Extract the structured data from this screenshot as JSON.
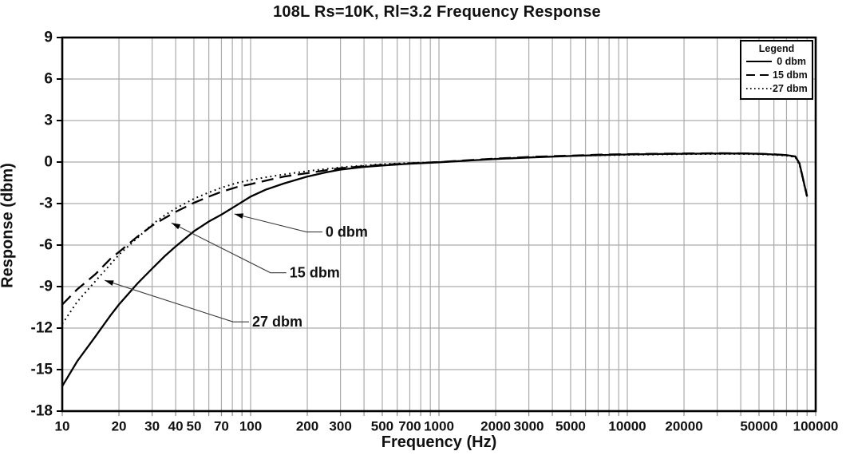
{
  "title": "108L Rs=10K, Rl=3.2 Frequency Response",
  "x_axis": {
    "label": "Frequency (Hz)",
    "scale": "log",
    "min": 10,
    "max": 100000,
    "tick_values": [
      10,
      20,
      30,
      40,
      50,
      70,
      100,
      200,
      300,
      500,
      700,
      1000,
      2000,
      3000,
      5000,
      10000,
      20000,
      50000,
      100000
    ],
    "tick_labels": [
      "10",
      "20",
      "30",
      "40",
      "50",
      "70",
      "100",
      "200",
      "300",
      "500",
      "700",
      "1000",
      "2000",
      "3000",
      "5000",
      "10000",
      "20000",
      "50000",
      "100000"
    ]
  },
  "y_axis": {
    "label": "Response (dbm)",
    "scale": "linear",
    "min": -18,
    "max": 9,
    "step": 3,
    "tick_labels": [
      "9",
      "6",
      "3",
      "0",
      "-3",
      "-6",
      "-9",
      "-12",
      "-15",
      "-18"
    ]
  },
  "legend": {
    "title": "Legend",
    "entries": [
      {
        "label": "0 dbm",
        "style": "solid"
      },
      {
        "label": "15 dbm",
        "style": "dashed"
      },
      {
        "label": "27 dbm",
        "style": "dotted"
      }
    ]
  },
  "annotations": [
    {
      "label": "0 dbm",
      "arrow_hz": 82,
      "arrow_dbm": -3.75,
      "text_hz": 250,
      "text_dbm": -5.05
    },
    {
      "label": "15 dbm",
      "arrow_hz": 38,
      "arrow_dbm": -4.4,
      "text_hz": 161,
      "text_dbm": -8.0
    },
    {
      "label": "27 dbm",
      "arrow_hz": 16.8,
      "arrow_dbm": -8.55,
      "text_hz": 102,
      "text_dbm": -11.55
    }
  ],
  "colors": {
    "background": "#ffffff",
    "grid": "#ababab",
    "axis": "#000000",
    "curve": "#000000",
    "text": "#111111",
    "leader_line": "#3c3c3c"
  },
  "chart_data": {
    "type": "line",
    "title": "108L Rs=10K, Rl=3.2 Frequency Response",
    "xlabel": "Frequency (Hz)",
    "ylabel": "Response (dbm)",
    "x_scale": "log",
    "xlim": [
      10,
      100000
    ],
    "ylim": [
      -18,
      9
    ],
    "y_tick_step": 3,
    "grid": true,
    "legend_position": "top-right",
    "series": [
      {
        "name": "0 dbm",
        "line_style": "solid",
        "points": [
          [
            10,
            -16.2
          ],
          [
            12,
            -14.4
          ],
          [
            15,
            -12.6
          ],
          [
            18,
            -11.1
          ],
          [
            20,
            -10.3
          ],
          [
            25,
            -8.8
          ],
          [
            30,
            -7.7
          ],
          [
            35,
            -6.8
          ],
          [
            40,
            -6.1
          ],
          [
            50,
            -5.0
          ],
          [
            60,
            -4.3
          ],
          [
            70,
            -3.8
          ],
          [
            85,
            -3.1
          ],
          [
            100,
            -2.5
          ],
          [
            120,
            -2.0
          ],
          [
            150,
            -1.55
          ],
          [
            200,
            -1.05
          ],
          [
            250,
            -0.75
          ],
          [
            300,
            -0.55
          ],
          [
            400,
            -0.35
          ],
          [
            500,
            -0.25
          ],
          [
            700,
            -0.12
          ],
          [
            1000,
            -0.02
          ],
          [
            1500,
            0.12
          ],
          [
            2000,
            0.22
          ],
          [
            3000,
            0.33
          ],
          [
            5000,
            0.44
          ],
          [
            7000,
            0.5
          ],
          [
            10000,
            0.55
          ],
          [
            15000,
            0.58
          ],
          [
            20000,
            0.6
          ],
          [
            30000,
            0.62
          ],
          [
            40000,
            0.62
          ],
          [
            50000,
            0.6
          ],
          [
            60000,
            0.55
          ],
          [
            70000,
            0.5
          ],
          [
            78000,
            0.4
          ],
          [
            82000,
            -0.1
          ],
          [
            86000,
            -1.3
          ],
          [
            90000,
            -2.5
          ]
        ]
      },
      {
        "name": "15 dbm",
        "line_style": "dashed",
        "points": [
          [
            10,
            -10.3
          ],
          [
            12,
            -9.2
          ],
          [
            15,
            -8.1
          ],
          [
            18,
            -7.0
          ],
          [
            20,
            -6.5
          ],
          [
            25,
            -5.4
          ],
          [
            30,
            -4.6
          ],
          [
            35,
            -4.05
          ],
          [
            40,
            -3.6
          ],
          [
            50,
            -2.95
          ],
          [
            60,
            -2.5
          ],
          [
            70,
            -2.15
          ],
          [
            85,
            -1.8
          ],
          [
            100,
            -1.6
          ],
          [
            120,
            -1.35
          ],
          [
            150,
            -1.05
          ],
          [
            200,
            -0.8
          ],
          [
            250,
            -0.6
          ],
          [
            300,
            -0.45
          ],
          [
            400,
            -0.3
          ],
          [
            500,
            -0.2
          ],
          [
            700,
            -0.1
          ],
          [
            1000,
            0.0
          ],
          [
            1500,
            0.15
          ],
          [
            2000,
            0.25
          ],
          [
            3000,
            0.37
          ],
          [
            5000,
            0.47
          ],
          [
            7000,
            0.53
          ],
          [
            10000,
            0.57
          ],
          [
            15000,
            0.6
          ],
          [
            20000,
            0.62
          ],
          [
            30000,
            0.64
          ],
          [
            40000,
            0.63
          ],
          [
            50000,
            0.6
          ],
          [
            60000,
            0.56
          ],
          [
            70000,
            0.5
          ],
          [
            78000,
            0.4
          ],
          [
            82000,
            -0.1
          ],
          [
            86000,
            -1.3
          ],
          [
            90000,
            -2.45
          ]
        ]
      },
      {
        "name": "27 dbm",
        "line_style": "dotted",
        "points": [
          [
            10,
            -11.7
          ],
          [
            12,
            -10.1
          ],
          [
            15,
            -8.6
          ],
          [
            18,
            -7.4
          ],
          [
            20,
            -6.7
          ],
          [
            25,
            -5.5
          ],
          [
            30,
            -4.5
          ],
          [
            35,
            -3.85
          ],
          [
            40,
            -3.35
          ],
          [
            50,
            -2.65
          ],
          [
            60,
            -2.2
          ],
          [
            70,
            -1.85
          ],
          [
            85,
            -1.5
          ],
          [
            100,
            -1.3
          ],
          [
            120,
            -1.1
          ],
          [
            150,
            -0.9
          ],
          [
            200,
            -0.65
          ],
          [
            250,
            -0.5
          ],
          [
            300,
            -0.38
          ],
          [
            400,
            -0.25
          ],
          [
            500,
            -0.15
          ],
          [
            700,
            -0.07
          ],
          [
            1000,
            0.0
          ],
          [
            1500,
            0.13
          ],
          [
            2000,
            0.24
          ],
          [
            3000,
            0.35
          ],
          [
            5000,
            0.44
          ],
          [
            7000,
            0.48
          ],
          [
            10000,
            0.52
          ],
          [
            15000,
            0.55
          ],
          [
            20000,
            0.57
          ],
          [
            30000,
            0.58
          ],
          [
            40000,
            0.58
          ],
          [
            50000,
            0.56
          ],
          [
            60000,
            0.52
          ],
          [
            70000,
            0.46
          ],
          [
            78000,
            0.36
          ],
          [
            82000,
            -0.2
          ],
          [
            86000,
            -1.4
          ],
          [
            90000,
            -2.55
          ]
        ]
      }
    ]
  }
}
